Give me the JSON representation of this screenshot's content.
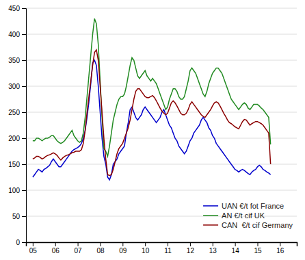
{
  "chart_data": {
    "type": "line",
    "x": [
      2005,
      2005.0833333333,
      2005.1666666667,
      2005.25,
      2005.3333333333,
      2005.4166666667,
      2005.5,
      2005.5833333333,
      2005.6666666667,
      2005.75,
      2005.8333333333,
      2005.9166666667,
      2006,
      2006.0833333333,
      2006.1666666667,
      2006.25,
      2006.3333333333,
      2006.4166666667,
      2006.5,
      2006.5833333333,
      2006.6666666667,
      2006.75,
      2006.8333333333,
      2006.9166666667,
      2007,
      2007.0833333333,
      2007.1666666667,
      2007.25,
      2007.3333333333,
      2007.4166666667,
      2007.5,
      2007.5833333333,
      2007.6666666667,
      2007.75,
      2007.8333333333,
      2007.9166666667,
      2008,
      2008.0833333333,
      2008.1666666667,
      2008.25,
      2008.3333333333,
      2008.4166666667,
      2008.5,
      2008.5833333333,
      2008.6666666667,
      2008.75,
      2008.8333333333,
      2008.9166666667,
      2009,
      2009.0833333333,
      2009.1666666667,
      2009.25,
      2009.3333333333,
      2009.4166666667,
      2009.5,
      2009.5833333333,
      2009.6666666667,
      2009.75,
      2009.8333333333,
      2009.9166666667,
      2010,
      2010.0833333333,
      2010.1666666667,
      2010.25,
      2010.3333333333,
      2010.4166666667,
      2010.5,
      2010.5833333333,
      2010.6666666667,
      2010.75,
      2010.8333333333,
      2010.9166666667,
      2011,
      2011.0833333333,
      2011.1666666667,
      2011.25,
      2011.3333333333,
      2011.4166666667,
      2011.5,
      2011.5833333333,
      2011.6666666667,
      2011.75,
      2011.8333333333,
      2011.9166666667,
      2012,
      2012.0833333333,
      2012.1666666667,
      2012.25,
      2012.3333333333,
      2012.4166666667,
      2012.5,
      2012.5833333333,
      2012.6666666667,
      2012.75,
      2012.8333333333,
      2012.9166666667,
      2013,
      2013.0833333333,
      2013.1666666667,
      2013.25,
      2013.3333333333,
      2013.4166666667,
      2013.5,
      2013.5833333333,
      2013.6666666667,
      2013.75,
      2013.8333333333,
      2013.9166666667,
      2014,
      2014.0833333333,
      2014.1666666667,
      2014.25,
      2014.3333333333,
      2014.4166666667,
      2014.5,
      2014.5833333333,
      2014.6666666667,
      2014.75,
      2014.8333333333,
      2014.9166666667,
      2015,
      2015.0833333333,
      2015.1666666667,
      2015.25,
      2015.3333333333,
      2015.4166666667,
      2015.5,
      2015.5833333333
    ],
    "series": [
      {
        "name": "UAN €/t fot France",
        "color": "#0000cc",
        "values": [
          125,
          130,
          135,
          140,
          138,
          135,
          140,
          142,
          145,
          148,
          155,
          160,
          155,
          150,
          145,
          145,
          150,
          155,
          160,
          165,
          170,
          175,
          178,
          180,
          182,
          185,
          190,
          200,
          215,
          240,
          270,
          305,
          345,
          350,
          340,
          300,
          250,
          200,
          165,
          150,
          125,
          120,
          130,
          150,
          155,
          160,
          170,
          175,
          180,
          185,
          210,
          230,
          255,
          260,
          250,
          240,
          235,
          240,
          245,
          255,
          260,
          255,
          250,
          245,
          240,
          235,
          230,
          235,
          240,
          250,
          255,
          245,
          235,
          225,
          220,
          210,
          200,
          195,
          185,
          180,
          175,
          170,
          175,
          185,
          195,
          200,
          210,
          215,
          220,
          225,
          235,
          240,
          235,
          230,
          220,
          215,
          205,
          200,
          190,
          185,
          180,
          175,
          170,
          165,
          160,
          155,
          150,
          145,
          140,
          138,
          135,
          138,
          140,
          138,
          135,
          132,
          130,
          135,
          138,
          140,
          145,
          148,
          145,
          140,
          138,
          135,
          133,
          130
        ]
      },
      {
        "name": "AN €/t cif UK",
        "color": "#228B22",
        "values": [
          195,
          195,
          200,
          200,
          198,
          195,
          198,
          200,
          200,
          202,
          205,
          205,
          200,
          195,
          192,
          190,
          192,
          195,
          200,
          205,
          210,
          215,
          205,
          200,
          195,
          192,
          195,
          210,
          240,
          280,
          320,
          360,
          400,
          430,
          420,
          380,
          310,
          240,
          180,
          175,
          165,
          185,
          210,
          235,
          250,
          265,
          275,
          280,
          280,
          285,
          300,
          320,
          340,
          355,
          350,
          335,
          320,
          315,
          320,
          325,
          330,
          320,
          315,
          310,
          315,
          310,
          305,
          295,
          285,
          275,
          265,
          255,
          260,
          275,
          285,
          295,
          295,
          290,
          280,
          275,
          275,
          280,
          295,
          310,
          330,
          335,
          330,
          325,
          315,
          305,
          295,
          285,
          280,
          290,
          305,
          315,
          325,
          330,
          335,
          335,
          330,
          325,
          315,
          305,
          295,
          285,
          275,
          270,
          265,
          260,
          255,
          260,
          265,
          268,
          265,
          258,
          255,
          260,
          265,
          265,
          265,
          262,
          258,
          255,
          250,
          245,
          240,
          188
        ]
      },
      {
        "name": "CAN  €/t cif Germany",
        "color": "#8B0000",
        "values": [
          160,
          162,
          165,
          165,
          163,
          160,
          162,
          165,
          167,
          168,
          170,
          172,
          170,
          167,
          162,
          158,
          162,
          165,
          167,
          168,
          170,
          172,
          173,
          175,
          175,
          175,
          178,
          190,
          215,
          250,
          280,
          310,
          340,
          365,
          370,
          350,
          300,
          250,
          200,
          160,
          130,
          128,
          130,
          140,
          155,
          170,
          180,
          185,
          190,
          200,
          210,
          220,
          235,
          255,
          275,
          290,
          295,
          295,
          290,
          285,
          280,
          278,
          278,
          280,
          282,
          278,
          272,
          265,
          258,
          252,
          248,
          245,
          248,
          258,
          268,
          272,
          268,
          262,
          255,
          248,
          245,
          245,
          248,
          255,
          265,
          270,
          265,
          260,
          255,
          250,
          245,
          242,
          240,
          245,
          250,
          255,
          262,
          268,
          270,
          268,
          262,
          255,
          248,
          242,
          235,
          230,
          228,
          225,
          222,
          220,
          218,
          225,
          232,
          236,
          235,
          230,
          225,
          228,
          230,
          232,
          232,
          230,
          228,
          225,
          220,
          215,
          210,
          150
        ]
      }
    ],
    "xlim": [
      2004.7,
      2016.75
    ],
    "xticks": [
      {
        "value": 2005,
        "label": "05"
      },
      {
        "value": 2006,
        "label": "06"
      },
      {
        "value": 2007,
        "label": "07"
      },
      {
        "value": 2008,
        "label": "08"
      },
      {
        "value": 2009,
        "label": "09"
      },
      {
        "value": 2010,
        "label": "10"
      },
      {
        "value": 2011,
        "label": "11"
      },
      {
        "value": 2012,
        "label": "12"
      },
      {
        "value": 2013,
        "label": "13"
      },
      {
        "value": 2014,
        "label": "14"
      },
      {
        "value": 2015,
        "label": "15"
      },
      {
        "value": 2016,
        "label": "16"
      }
    ],
    "ylim": [
      0,
      450
    ],
    "yticks": [
      0,
      50,
      100,
      150,
      200,
      250,
      300,
      350,
      400,
      450
    ],
    "grid": true,
    "legend": "lower right"
  }
}
